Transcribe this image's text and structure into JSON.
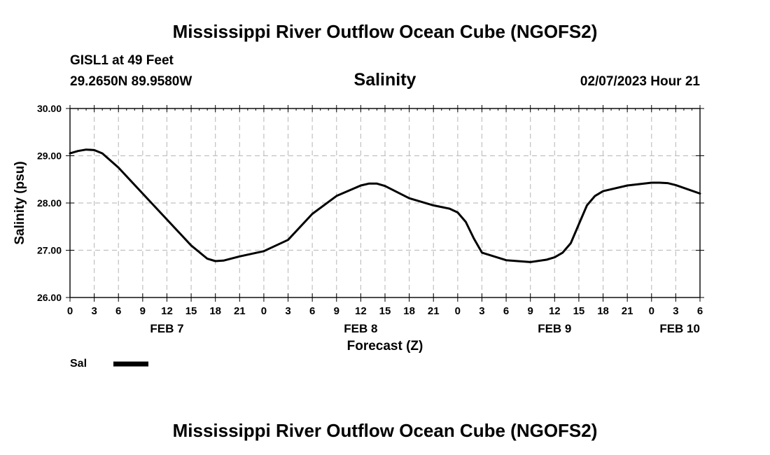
{
  "header": {
    "title": "Mississippi River Outflow Ocean Cube (NGOFS2)",
    "station": "GISL1 at 49 Feet",
    "coordinates": "29.2650N  89.9580W",
    "datetime": "02/07/2023 Hour 21"
  },
  "footer": {
    "title": "Mississippi River Outflow Ocean Cube (NGOFS2)"
  },
  "colors": {
    "grid": "#c0c0c0",
    "line": "#000000"
  },
  "chart_data": {
    "type": "line",
    "title": "Salinity",
    "xlabel": "Forecast (Z)",
    "ylabel": "Salinity (psu)",
    "ylim": [
      26.0,
      30.0
    ],
    "xlim": [
      0,
      78
    ],
    "grid": true,
    "y_ticks": [
      "26.00",
      "27.00",
      "28.00",
      "29.00",
      "30.00"
    ],
    "x_ticks": [
      {
        "x": 0,
        "label": "0"
      },
      {
        "x": 3,
        "label": "3"
      },
      {
        "x": 6,
        "label": "6"
      },
      {
        "x": 9,
        "label": "9"
      },
      {
        "x": 12,
        "label": "12"
      },
      {
        "x": 15,
        "label": "15"
      },
      {
        "x": 18,
        "label": "18"
      },
      {
        "x": 21,
        "label": "21"
      },
      {
        "x": 24,
        "label": "0"
      },
      {
        "x": 27,
        "label": "3"
      },
      {
        "x": 30,
        "label": "6"
      },
      {
        "x": 33,
        "label": "9"
      },
      {
        "x": 36,
        "label": "12"
      },
      {
        "x": 39,
        "label": "15"
      },
      {
        "x": 42,
        "label": "18"
      },
      {
        "x": 45,
        "label": "21"
      },
      {
        "x": 48,
        "label": "0"
      },
      {
        "x": 51,
        "label": "3"
      },
      {
        "x": 54,
        "label": "6"
      },
      {
        "x": 57,
        "label": "9"
      },
      {
        "x": 60,
        "label": "12"
      },
      {
        "x": 63,
        "label": "15"
      },
      {
        "x": 66,
        "label": "18"
      },
      {
        "x": 69,
        "label": "21"
      },
      {
        "x": 72,
        "label": "0"
      },
      {
        "x": 75,
        "label": "3"
      },
      {
        "x": 78,
        "label": "6"
      }
    ],
    "date_labels": [
      {
        "x": 12,
        "label": "FEB 7"
      },
      {
        "x": 36,
        "label": "FEB 8"
      },
      {
        "x": 60,
        "label": "FEB 9"
      },
      {
        "x": 75.5,
        "label": "FEB 10"
      }
    ],
    "legend": {
      "label": "Sal",
      "placement": "bottom-left"
    },
    "series": [
      {
        "name": "Sal",
        "x": [
          0,
          1,
          2,
          3,
          4,
          6,
          9,
          12,
          15,
          17,
          18,
          19,
          21,
          24,
          27,
          30,
          33,
          36,
          37,
          38,
          39,
          42,
          45,
          47,
          48,
          49,
          50,
          51,
          54,
          57,
          59,
          60,
          61,
          62,
          63,
          64,
          65,
          66,
          69,
          72,
          73,
          74,
          75,
          78
        ],
        "y": [
          29.05,
          29.1,
          29.13,
          29.12,
          29.05,
          28.75,
          28.2,
          27.65,
          27.1,
          26.82,
          26.77,
          26.78,
          26.87,
          26.98,
          27.22,
          27.77,
          28.15,
          28.37,
          28.41,
          28.41,
          28.36,
          28.1,
          27.95,
          27.88,
          27.8,
          27.6,
          27.25,
          26.95,
          26.79,
          26.75,
          26.8,
          26.85,
          26.95,
          27.15,
          27.55,
          27.95,
          28.15,
          28.25,
          28.37,
          28.43,
          28.43,
          28.42,
          28.38,
          28.2
        ]
      }
    ]
  }
}
